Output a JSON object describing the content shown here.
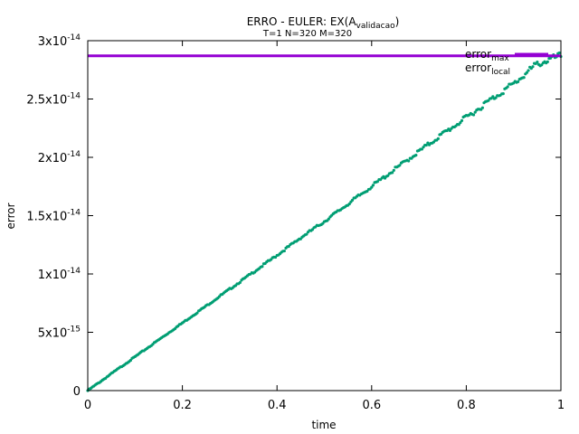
{
  "chart_data": {
    "type": "scatter",
    "title": {
      "main": "ERRO - EULER: EX(A",
      "main_sub": "validacao",
      "main_close": ")",
      "subtitle": "T=1 N=320 M=320"
    },
    "xlabel": "time",
    "ylabel": "error",
    "xlim": [
      0,
      1
    ],
    "ylim": [
      0,
      3e-14
    ],
    "x_ticks": [
      {
        "value": 0,
        "label": "0"
      },
      {
        "value": 0.2,
        "label": "0.2"
      },
      {
        "value": 0.4,
        "label": "0.4"
      },
      {
        "value": 0.6,
        "label": "0.6"
      },
      {
        "value": 0.8,
        "label": "0.8"
      },
      {
        "value": 1,
        "label": "1"
      }
    ],
    "y_ticks": [
      {
        "value": 0,
        "mant": "0",
        "exp": ""
      },
      {
        "value": 5e-15,
        "mant": "5x10",
        "exp": "-15"
      },
      {
        "value": 1e-14,
        "mant": "1x10",
        "exp": "-14"
      },
      {
        "value": 1.5e-14,
        "mant": "1.5x10",
        "exp": "-14"
      },
      {
        "value": 2e-14,
        "mant": "2x10",
        "exp": "-14"
      },
      {
        "value": 2.5e-14,
        "mant": "2.5x10",
        "exp": "-14"
      },
      {
        "value": 3e-14,
        "mant": "3x10",
        "exp": "-14"
      }
    ],
    "grid": false,
    "legend_position": "top-right",
    "series": [
      {
        "name": "error",
        "name_sub": "max",
        "kind": "line",
        "color": "#9400d3",
        "y": 2.87e-14
      },
      {
        "name": "error",
        "name_sub": "local",
        "kind": "points",
        "color": "#009e73",
        "points": [
          [
            0.0,
            0.0
          ],
          [
            0.05,
            1.45e-15
          ],
          [
            0.1,
            2.9e-15
          ],
          [
            0.15,
            4.35e-15
          ],
          [
            0.2,
            5.8e-15
          ],
          [
            0.25,
            7.25e-15
          ],
          [
            0.3,
            8.7e-15
          ],
          [
            0.35,
            1.015e-14
          ],
          [
            0.4,
            1.16e-14
          ],
          [
            0.45,
            1.31e-14
          ],
          [
            0.5,
            1.45e-14
          ],
          [
            0.55,
            1.6e-14
          ],
          [
            0.6,
            1.75e-14
          ],
          [
            0.65,
            1.9e-14
          ],
          [
            0.7,
            2.05e-14
          ],
          [
            0.75,
            2.2e-14
          ],
          [
            0.8,
            2.34e-14
          ],
          [
            0.85,
            2.49e-14
          ],
          [
            0.9,
            2.63e-14
          ],
          [
            0.95,
            2.8e-14
          ],
          [
            1.0,
            2.87e-14
          ]
        ]
      }
    ]
  }
}
